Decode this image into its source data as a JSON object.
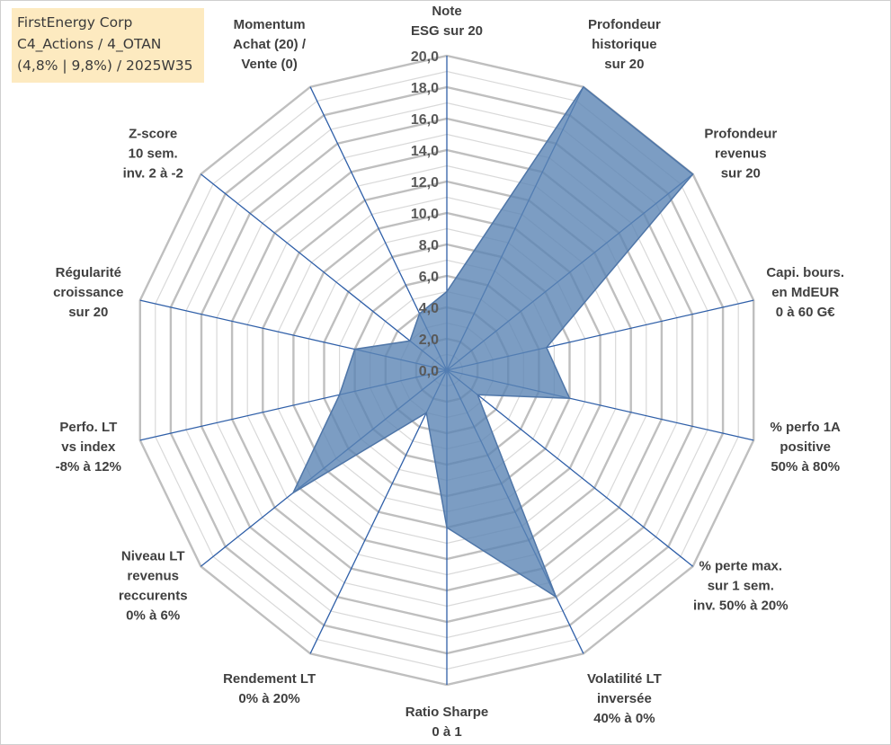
{
  "info": {
    "line1": "FirstEnergy Corp",
    "line2": "C4_Actions / 4_OTAN",
    "line3": "(4,8% | 9,8%) / 2025W35"
  },
  "colors": {
    "fill": "#5b84b4",
    "fill_opacity": 0.8,
    "stroke": "#4f76a8",
    "axis": "#2f5fa8",
    "major_grid": "#bfbfbf",
    "minor_grid": "#d9d9d9"
  },
  "chart_data": {
    "type": "radar",
    "range": [
      0,
      20
    ],
    "major_step": 2,
    "minor_step": 1,
    "tick_labels": [
      "0,0",
      "2,0",
      "4,0",
      "6,0",
      "8,0",
      "10,0",
      "12,0",
      "14,0",
      "16,0",
      "18,0",
      "20,0"
    ],
    "axes": [
      {
        "label_lines": [
          "Note",
          "ESG sur 20"
        ],
        "value": 5
      },
      {
        "label_lines": [
          "Profondeur",
          "historique",
          "sur 20"
        ],
        "value": 20
      },
      {
        "label_lines": [
          "Profondeur",
          "revenus",
          "sur 20"
        ],
        "value": 20
      },
      {
        "label_lines": [
          "Capi. bours.",
          "en MdEUR",
          "0 à 60 G€"
        ],
        "value": 6.5
      },
      {
        "label_lines": [
          "% perfo 1A",
          "positive",
          "50% à 80%"
        ],
        "value": 8
      },
      {
        "label_lines": [
          "% perte max.",
          "sur 1 sem.",
          "inv. 50% à 20%"
        ],
        "value": 2.5
      },
      {
        "label_lines": [
          "Volatilité LT",
          "inversée",
          "40% à 0%"
        ],
        "value": 16
      },
      {
        "label_lines": [
          "Ratio Sharpe",
          "0 à 1"
        ],
        "value": 10
      },
      {
        "label_lines": [
          "Rendement LT",
          "0% à 20%"
        ],
        "value": 3
      },
      {
        "label_lines": [
          "Niveau LT",
          "revenus",
          "reccurents",
          "0% à 6%"
        ],
        "value": 12.5
      },
      {
        "label_lines": [
          "Perfo. LT",
          "vs index",
          "-8% à 12%"
        ],
        "value": 7
      },
      {
        "label_lines": [
          "Régularité",
          "croissance",
          "sur 20"
        ],
        "value": 6
      },
      {
        "label_lines": [
          "Z-score",
          "10 sem.",
          "inv. 2 à -2"
        ],
        "value": 3
      },
      {
        "label_lines": [
          "Momentum",
          "Achat (20) /",
          "Vente (0)"
        ],
        "value": 4
      }
    ]
  }
}
